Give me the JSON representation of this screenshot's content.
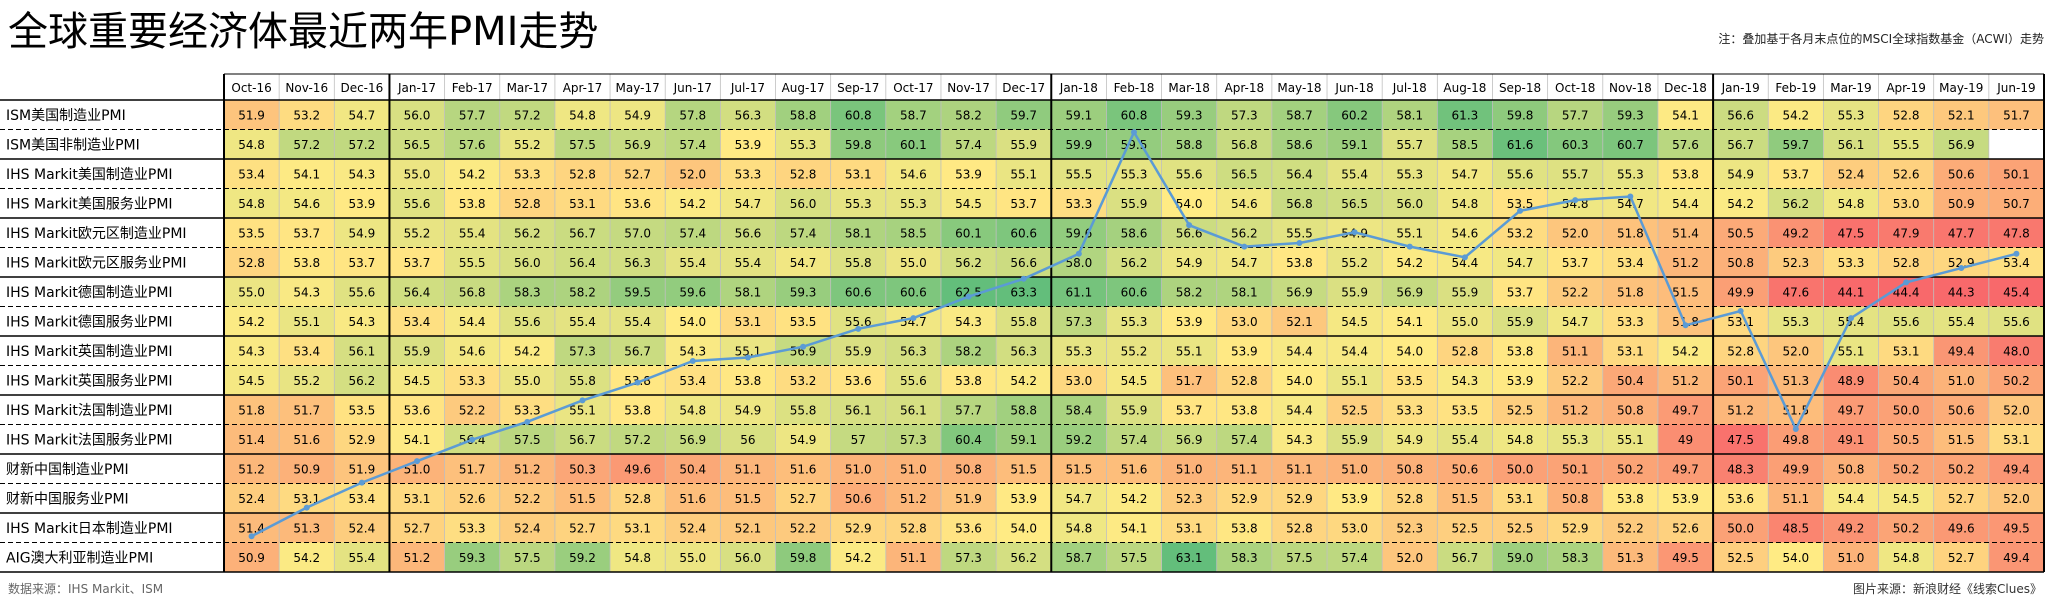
{
  "page": {
    "title": "全球重要经济体最近两年PMI走势",
    "note": "注：叠加基于各月末点位的MSCI全球指数基金（ACWI）走势",
    "source_left": "数据来源：IHS Markit、ISM",
    "source_right": "图片来源：新浪财经《线索Clues》"
  },
  "chart_data": {
    "type": "heatmap",
    "color_scale": {
      "low": "#f8696b",
      "mid": "#ffeb84",
      "high": "#63be7b",
      "min": 47,
      "mid_value": 54,
      "max": 62
    },
    "overlay": {
      "type": "line",
      "color": "#5b9bd5",
      "label": "MSCI全球指数基金（ACWI）",
      "value_scale": "relative, not labeled"
    },
    "columns": [
      "Oct-16",
      "Nov-16",
      "Dec-16",
      "Jan-17",
      "Feb-17",
      "Mar-17",
      "Apr-17",
      "May-17",
      "Jun-17",
      "Jul-17",
      "Aug-17",
      "Sep-17",
      "Oct-17",
      "Nov-17",
      "Dec-17",
      "Jan-18",
      "Feb-18",
      "Mar-18",
      "Apr-18",
      "May-18",
      "Jun-18",
      "Jul-18",
      "Aug-18",
      "Sep-18",
      "Oct-18",
      "Nov-18",
      "Dec-18",
      "Jan-19",
      "Feb-19",
      "Mar-19",
      "Apr-19",
      "May-19",
      "Jun-19"
    ],
    "rows": [
      {
        "name": "ISM美国制造业PMI",
        "values": [
          "51.9",
          "53.2",
          "54.7",
          "56.0",
          "57.7",
          "57.2",
          "54.8",
          "54.9",
          "57.8",
          "56.3",
          "58.8",
          "60.8",
          "58.7",
          "58.2",
          "59.7",
          "59.1",
          "60.8",
          "59.3",
          "57.3",
          "58.7",
          "60.2",
          "58.1",
          "61.3",
          "59.8",
          "57.7",
          "59.3",
          "54.1",
          "56.6",
          "54.2",
          "55.3",
          "52.8",
          "52.1",
          "51.7"
        ]
      },
      {
        "name": "ISM美国非制造业PMI",
        "values": [
          "54.8",
          "57.2",
          "57.2",
          "56.5",
          "57.6",
          "55.2",
          "57.5",
          "56.9",
          "57.4",
          "53.9",
          "55.3",
          "59.8",
          "60.1",
          "57.4",
          "55.9",
          "59.9",
          "59.5",
          "58.8",
          "56.8",
          "58.6",
          "59.1",
          "55.7",
          "58.5",
          "61.6",
          "60.3",
          "60.7",
          "57.6",
          "56.7",
          "59.7",
          "56.1",
          "55.5",
          "56.9",
          ""
        ]
      },
      {
        "name": "IHS Markit美国制造业PMI",
        "values": [
          "53.4",
          "54.1",
          "54.3",
          "55.0",
          "54.2",
          "53.3",
          "52.8",
          "52.7",
          "52.0",
          "53.3",
          "52.8",
          "53.1",
          "54.6",
          "53.9",
          "55.1",
          "55.5",
          "55.3",
          "55.6",
          "56.5",
          "56.4",
          "55.4",
          "55.3",
          "54.7",
          "55.6",
          "55.7",
          "55.3",
          "53.8",
          "54.9",
          "53.7",
          "52.4",
          "52.6",
          "50.6",
          "50.1"
        ]
      },
      {
        "name": "IHS Markit美国服务业PMI",
        "values": [
          "54.8",
          "54.6",
          "53.9",
          "55.6",
          "53.8",
          "52.8",
          "53.1",
          "53.6",
          "54.2",
          "54.7",
          "56.0",
          "55.3",
          "55.3",
          "54.5",
          "53.7",
          "53.3",
          "55.9",
          "54.0",
          "54.6",
          "56.8",
          "56.5",
          "56.0",
          "54.8",
          "53.5",
          "54.8",
          "54.7",
          "54.4",
          "54.2",
          "56.2",
          "54.8",
          "53.0",
          "50.9",
          "50.7"
        ]
      },
      {
        "name": "IHS Markit欧元区制造业PMI",
        "values": [
          "53.5",
          "53.7",
          "54.9",
          "55.2",
          "55.4",
          "56.2",
          "56.7",
          "57.0",
          "57.4",
          "56.6",
          "57.4",
          "58.1",
          "58.5",
          "60.1",
          "60.6",
          "59.6",
          "58.6",
          "56.6",
          "56.2",
          "55.5",
          "54.9",
          "55.1",
          "54.6",
          "53.2",
          "52.0",
          "51.8",
          "51.4",
          "50.5",
          "49.2",
          "47.5",
          "47.9",
          "47.7",
          "47.8"
        ]
      },
      {
        "name": "IHS Markit欧元区服务业PMI",
        "values": [
          "52.8",
          "53.8",
          "53.7",
          "53.7",
          "55.5",
          "56.0",
          "56.4",
          "56.3",
          "55.4",
          "55.4",
          "54.7",
          "55.8",
          "55.0",
          "56.2",
          "56.6",
          "58.0",
          "56.2",
          "54.9",
          "54.7",
          "53.8",
          "55.2",
          "54.2",
          "54.4",
          "54.7",
          "53.7",
          "53.4",
          "51.2",
          "50.8",
          "52.3",
          "53.3",
          "52.8",
          "52.9",
          "53.4"
        ]
      },
      {
        "name": "IHS Markit德国制造业PMI",
        "values": [
          "55.0",
          "54.3",
          "55.6",
          "56.4",
          "56.8",
          "58.3",
          "58.2",
          "59.5",
          "59.6",
          "58.1",
          "59.3",
          "60.6",
          "60.6",
          "62.5",
          "63.3",
          "61.1",
          "60.6",
          "58.2",
          "58.1",
          "56.9",
          "55.9",
          "56.9",
          "55.9",
          "53.7",
          "52.2",
          "51.8",
          "51.5",
          "49.9",
          "47.6",
          "44.1",
          "44.4",
          "44.3",
          "45.4"
        ]
      },
      {
        "name": "IHS Markit德国服务业PMI",
        "values": [
          "54.2",
          "55.1",
          "54.3",
          "53.4",
          "54.4",
          "55.6",
          "55.4",
          "55.4",
          "54.0",
          "53.1",
          "53.5",
          "55.6",
          "54.7",
          "54.3",
          "55.8",
          "57.3",
          "55.3",
          "53.9",
          "53.0",
          "52.1",
          "54.5",
          "54.1",
          "55.0",
          "55.9",
          "54.7",
          "53.3",
          "51.8",
          "53.1",
          "55.3",
          "55.4",
          "55.6",
          "55.4",
          "55.6"
        ]
      },
      {
        "name": "IHS Markit英国制造业PMI",
        "values": [
          "54.3",
          "53.4",
          "56.1",
          "55.9",
          "54.6",
          "54.2",
          "57.3",
          "56.7",
          "54.3",
          "55.1",
          "56.9",
          "55.9",
          "56.3",
          "58.2",
          "56.3",
          "55.3",
          "55.2",
          "55.1",
          "53.9",
          "54.4",
          "54.4",
          "54.0",
          "52.8",
          "53.8",
          "51.1",
          "53.1",
          "54.2",
          "52.8",
          "52.0",
          "55.1",
          "53.1",
          "49.4",
          "48.0"
        ]
      },
      {
        "name": "IHS Markit英国服务业PMI",
        "values": [
          "54.5",
          "55.2",
          "56.2",
          "54.5",
          "53.3",
          "55.0",
          "55.8",
          "53.8",
          "53.4",
          "53.8",
          "53.2",
          "53.6",
          "55.6",
          "53.8",
          "54.2",
          "53.0",
          "54.5",
          "51.7",
          "52.8",
          "54.0",
          "55.1",
          "53.5",
          "54.3",
          "53.9",
          "52.2",
          "50.4",
          "51.2",
          "50.1",
          "51.3",
          "48.9",
          "50.4",
          "51.0",
          "50.2"
        ]
      },
      {
        "name": "IHS Markit法国制造业PMI",
        "values": [
          "51.8",
          "51.7",
          "53.5",
          "53.6",
          "52.2",
          "53.3",
          "55.1",
          "53.8",
          "54.8",
          "54.9",
          "55.8",
          "56.1",
          "56.1",
          "57.7",
          "58.8",
          "58.4",
          "55.9",
          "53.7",
          "53.8",
          "54.4",
          "52.5",
          "53.3",
          "53.5",
          "52.5",
          "51.2",
          "50.8",
          "49.7",
          "51.2",
          "51.5",
          "49.7",
          "50.0",
          "50.6",
          "52.0"
        ]
      },
      {
        "name": "IHS Markit法国服务业PMI",
        "values": [
          "51.4",
          "51.6",
          "52.9",
          "54.1",
          "56.4",
          "57.5",
          "56.7",
          "57.2",
          "56.9",
          "56",
          "54.9",
          "57",
          "57.3",
          "60.4",
          "59.1",
          "59.2",
          "57.4",
          "56.9",
          "57.4",
          "54.3",
          "55.9",
          "54.9",
          "55.4",
          "54.8",
          "55.3",
          "55.1",
          "49",
          "47.5",
          "49.8",
          "49.1",
          "50.5",
          "51.5",
          "53.1"
        ]
      },
      {
        "name": "财新中国制造业PMI",
        "values": [
          "51.2",
          "50.9",
          "51.9",
          "51.0",
          "51.7",
          "51.2",
          "50.3",
          "49.6",
          "50.4",
          "51.1",
          "51.6",
          "51.0",
          "51.0",
          "50.8",
          "51.5",
          "51.5",
          "51.6",
          "51.0",
          "51.1",
          "51.1",
          "51.0",
          "50.8",
          "50.6",
          "50.0",
          "50.1",
          "50.2",
          "49.7",
          "48.3",
          "49.9",
          "50.8",
          "50.2",
          "50.2",
          "49.4"
        ]
      },
      {
        "name": "财新中国服务业PMI",
        "values": [
          "52.4",
          "53.1",
          "53.4",
          "53.1",
          "52.6",
          "52.2",
          "51.5",
          "52.8",
          "51.6",
          "51.5",
          "52.7",
          "50.6",
          "51.2",
          "51.9",
          "53.9",
          "54.7",
          "54.2",
          "52.3",
          "52.9",
          "52.9",
          "53.9",
          "52.8",
          "51.5",
          "53.1",
          "50.8",
          "53.8",
          "53.9",
          "53.6",
          "51.1",
          "54.4",
          "54.5",
          "52.7",
          "52.0"
        ]
      },
      {
        "name": "IHS Markit日本制造业PMI",
        "values": [
          "51.4",
          "51.3",
          "52.4",
          "52.7",
          "53.3",
          "52.4",
          "52.7",
          "53.1",
          "52.4",
          "52.1",
          "52.2",
          "52.9",
          "52.8",
          "53.6",
          "54.0",
          "54.8",
          "54.1",
          "53.1",
          "53.8",
          "52.8",
          "53.0",
          "52.3",
          "52.5",
          "52.5",
          "52.9",
          "52.2",
          "52.6",
          "50.0",
          "48.5",
          "49.2",
          "50.2",
          "49.6",
          "49.5"
        ]
      },
      {
        "name": "AIG澳大利亚制造业PMI",
        "values": [
          "50.9",
          "54.2",
          "55.4",
          "51.2",
          "59.3",
          "57.5",
          "59.2",
          "54.8",
          "55.0",
          "56.0",
          "59.8",
          "54.2",
          "51.1",
          "57.3",
          "56.2",
          "58.7",
          "57.5",
          "63.1",
          "58.3",
          "57.5",
          "57.4",
          "52.0",
          "56.7",
          "59.0",
          "58.3",
          "51.3",
          "49.5",
          "52.5",
          "54.0",
          "51.0",
          "54.8",
          "52.7",
          "49.4"
        ]
      }
    ],
    "overlay_relative_level": [
      0.4,
      1.2,
      1.9,
      2.5,
      3.1,
      3.6,
      4.2,
      4.7,
      5.3,
      5.4,
      5.7,
      6.2,
      6.5,
      7.1,
      7.6,
      8.3,
      11.7,
      9.1,
      8.5,
      8.6,
      8.9,
      8.5,
      8.2,
      9.5,
      9.8,
      9.9,
      6.3,
      6.7,
      3.4,
      6.5,
      7.5,
      7.9,
      8.3
    ]
  }
}
